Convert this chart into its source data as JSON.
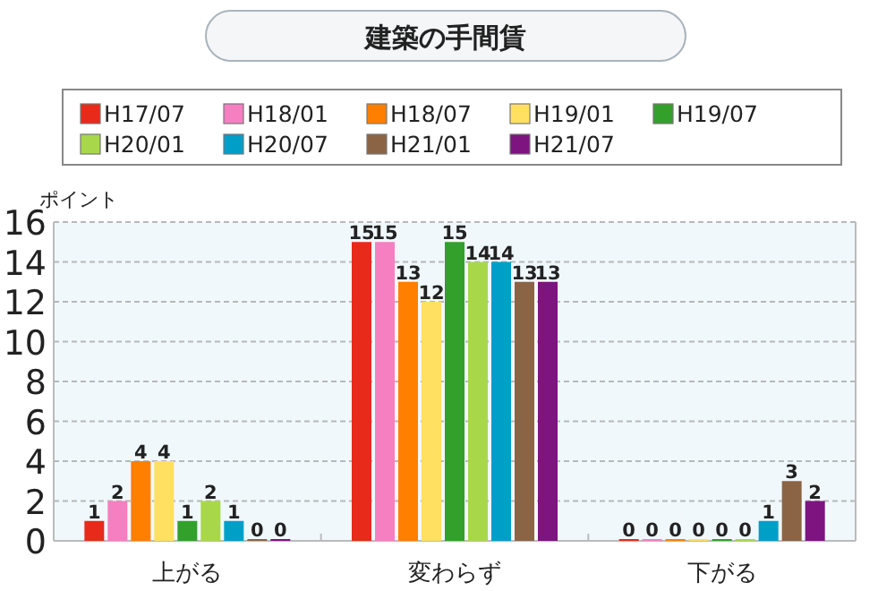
{
  "chart_data": {
    "type": "bar",
    "title": "建築の手間賃",
    "ylabel": "ポイント",
    "categories": [
      "上がる",
      "変わらず",
      "下がる"
    ],
    "series": [
      {
        "name": "H17/07",
        "color": "#e82a1a",
        "values": [
          1,
          15,
          0
        ]
      },
      {
        "name": "H18/01",
        "color": "#f57fc0",
        "values": [
          2,
          15,
          0
        ]
      },
      {
        "name": "H18/07",
        "color": "#ff7f00",
        "values": [
          4,
          13,
          0
        ]
      },
      {
        "name": "H19/01",
        "color": "#ffe060",
        "values": [
          4,
          12,
          0
        ]
      },
      {
        "name": "H19/07",
        "color": "#33a02c",
        "values": [
          1,
          15,
          0
        ]
      },
      {
        "name": "H20/01",
        "color": "#a8d84a",
        "values": [
          2,
          14,
          0
        ]
      },
      {
        "name": "H20/07",
        "color": "#009fc8",
        "values": [
          1,
          14,
          1
        ]
      },
      {
        "name": "H21/01",
        "color": "#8b6446",
        "values": [
          0,
          13,
          3
        ]
      },
      {
        "name": "H21/07",
        "color": "#7d1480",
        "values": [
          0,
          13,
          2
        ]
      }
    ],
    "ylim": [
      0,
      16
    ],
    "yticks": [
      0,
      2,
      4,
      6,
      8,
      10,
      12,
      14,
      16
    ],
    "grid": "y",
    "legend": "top",
    "data_labels": true
  }
}
